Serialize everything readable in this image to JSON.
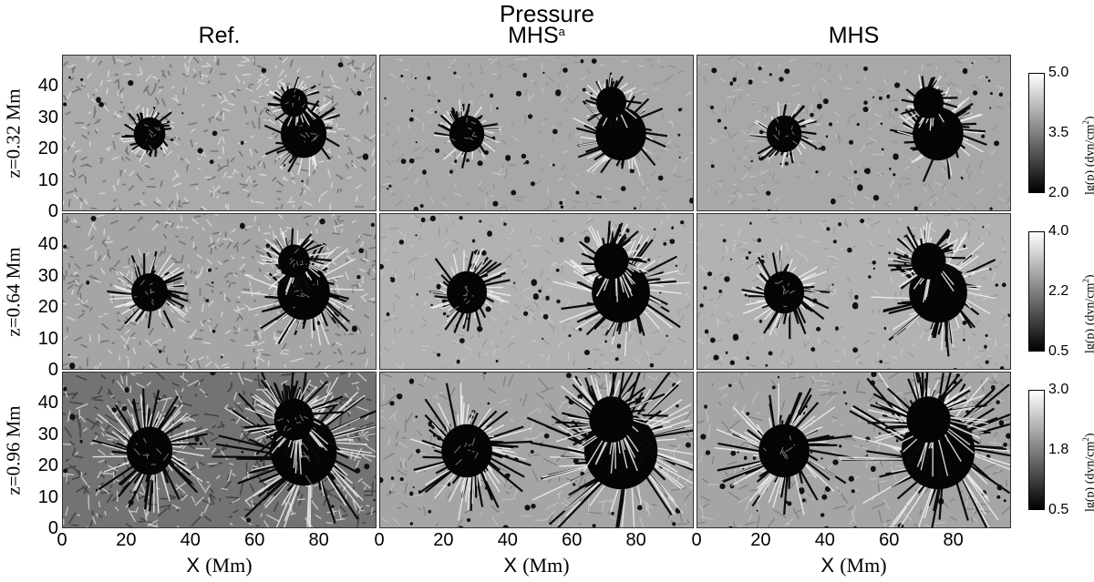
{
  "figure": {
    "title": "Pressure",
    "columns": [
      {
        "label": "Ref.",
        "sup": ""
      },
      {
        "label": "MHS",
        "sup": "a"
      },
      {
        "label": "MHS",
        "sup": ""
      }
    ],
    "rows": [
      {
        "label": "z=0.32 Mm",
        "cbar": {
          "max": "5.0",
          "mid": "3.5",
          "min": "2.0"
        }
      },
      {
        "label": "z=0.64 Mm",
        "cbar": {
          "max": "4.0",
          "mid": "2.2",
          "min": "0.5"
        }
      },
      {
        "label": "z=0.96 Mm",
        "cbar": {
          "max": "3.0",
          "mid": "1.8",
          "min": "0.5"
        }
      }
    ],
    "cbar_label_main": "lg(p) (dyn/cm",
    "cbar_label_sup": "2",
    "cbar_label_end": ")",
    "y_ticks": [
      "40",
      "30",
      "20",
      "10",
      "0"
    ],
    "x_ticks": [
      "0",
      "20",
      "40",
      "60",
      "80"
    ],
    "x_label": "X",
    "x_unit": "(Mm)"
  }
}
